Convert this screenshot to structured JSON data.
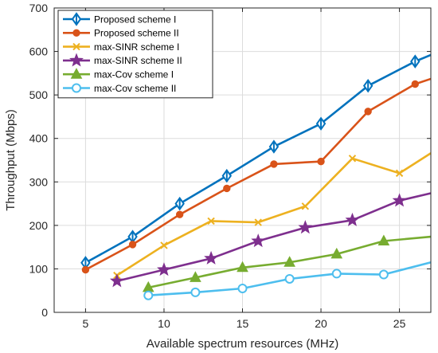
{
  "chart_data": {
    "type": "line",
    "xlabel": "Available spectrum resources (MHz)",
    "ylabel": "Throughput (Mbps)",
    "xlim": [
      3,
      27
    ],
    "ylim": [
      0,
      700
    ],
    "xticks": [
      "5",
      "10",
      "15",
      "20",
      "25"
    ],
    "yticks": [
      "0",
      "100",
      "200",
      "300",
      "400",
      "500",
      "600",
      "700"
    ],
    "grid": true,
    "legend_position": "top-left",
    "series": [
      {
        "name": "Proposed scheme I",
        "color": "#0072BD",
        "marker": "diamond",
        "x": [
          5,
          8,
          11,
          14,
          17,
          20,
          23,
          26,
          27
        ],
        "y": [
          114,
          174,
          250,
          314,
          381,
          434,
          521,
          577,
          592
        ]
      },
      {
        "name": "Proposed scheme II",
        "color": "#D95319",
        "marker": "circle-filled",
        "x": [
          5,
          8,
          11,
          14,
          17,
          20,
          23,
          26,
          27
        ],
        "y": [
          98,
          156,
          225,
          285,
          341,
          347,
          462,
          525,
          537
        ]
      },
      {
        "name": "max-SINR scheme I",
        "color": "#EDB120",
        "marker": "x",
        "x": [
          7,
          10,
          13,
          16,
          19,
          22,
          25,
          27
        ],
        "y": [
          85,
          154,
          210,
          207,
          244,
          354,
          320,
          366
        ]
      },
      {
        "name": "max-SINR scheme II",
        "color": "#7E2F8E",
        "marker": "star",
        "x": [
          7,
          10,
          13,
          16,
          19,
          22,
          25,
          27
        ],
        "y": [
          72,
          98,
          124,
          164,
          195,
          212,
          257,
          274
        ]
      },
      {
        "name": "max-Cov scheme I",
        "color": "#77AC30",
        "marker": "triangle",
        "x": [
          9,
          12,
          15,
          18,
          21,
          24,
          27
        ],
        "y": [
          57,
          80,
          103,
          115,
          134,
          164,
          174
        ]
      },
      {
        "name": "max-Cov scheme II",
        "color": "#4DBEEE",
        "marker": "circle-open",
        "x": [
          9,
          12,
          15,
          18,
          21,
          24,
          27
        ],
        "y": [
          39,
          46,
          55,
          77,
          89,
          87,
          115
        ]
      }
    ]
  }
}
